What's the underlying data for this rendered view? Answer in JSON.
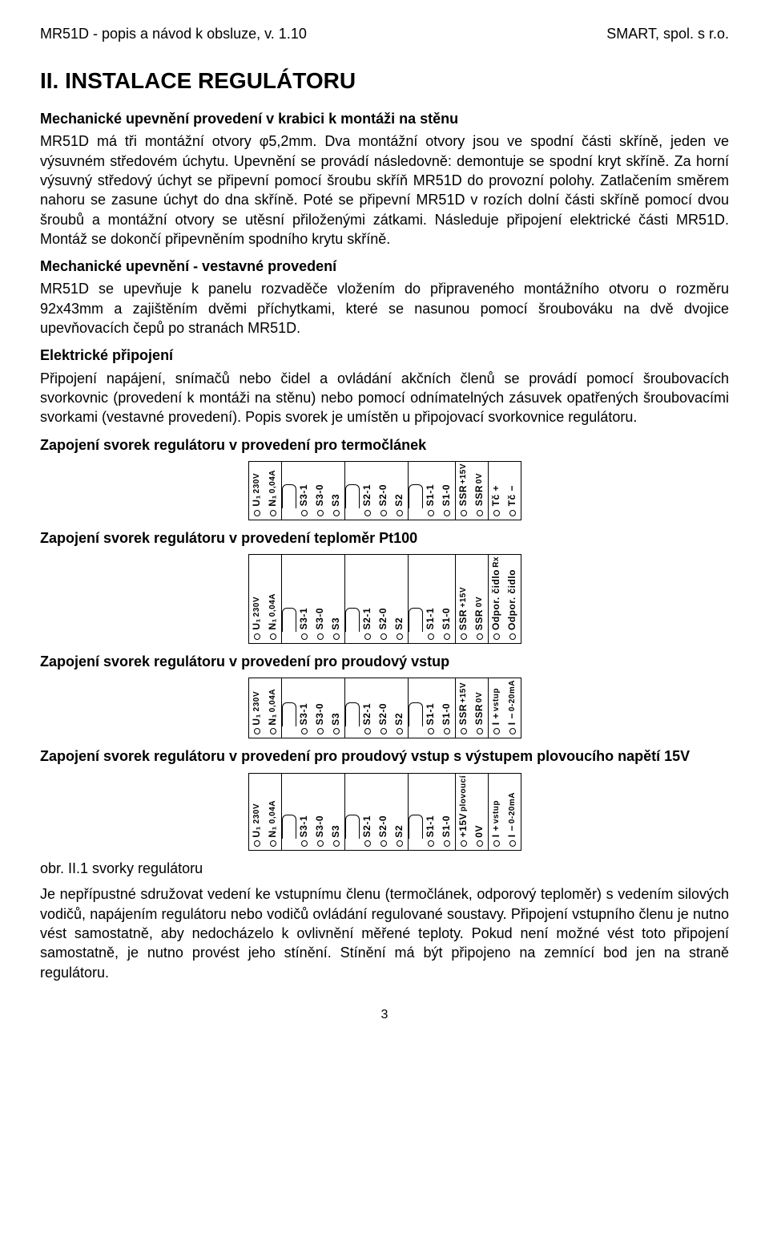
{
  "header": {
    "left": "MR51D  - popis a návod k obsluze, v. 1.10",
    "right": "SMART, spol. s r.o."
  },
  "sectionTitle": "II.    INSTALACE REGULÁTORU",
  "h3_1": "Mechanické upevnění provedení v krabici k montáži na stěnu",
  "p1": "MR51D má tři montážní otvory φ5,2mm. Dva montážní otvory jsou ve spodní části skříně, jeden ve výsuvném středovém úchytu. Upevnění se provádí následovně: demontuje se spodní kryt skříně. Za horní výsuvný středový úchyt se připevní pomocí šroubu skříň MR51D do provozní polohy. Zatlačením směrem nahoru se zasune úchyt do dna skříně. Poté se připevní MR51D v rozích dolní části skříně pomocí dvou šroubů a montážní otvory se utěsní přiloženými zátkami. Následuje připojení elektrické části MR51D. Montáž se dokončí připevněním spodního krytu skříně.",
  "h3_2": "Mechanické upevnění - vestavné provedení",
  "p2": "MR51D se upevňuje k panelu rozvaděče vložením do připraveného montážního otvoru o rozměru 92x43mm a zajištěním dvěmi příchytkami, které se nasunou pomocí šroubováku na dvě dvojice upevňovacích čepů po stranách MR51D.",
  "h3_3": "Elektrické připojení",
  "p3": "Připojení napájení, snímačů nebo čidel a ovládání akčních členů se provádí pomocí šroubovacích svorkovnic (provedení k montáži na stěnu) nebo pomocí odnímatelných zásuvek opatřených šroubovacími svorkami (vestavné provedení). Popis svorek je umístěn u připojovací svorkovnice regulátoru.",
  "h3_4": "Zapojení svorek regulátoru v provedení pro termočlánek",
  "h3_5": "Zapojení svorek regulátoru v provedení teploměr Pt100",
  "h3_6": "Zapojení svorek regulátoru v provedení pro proudový vstup",
  "h3_7": "Zapojení svorek regulátoru v provedení pro proudový vstup s výstupem plovoucího napětí 15V",
  "figCaption": "obr. II.1  svorky regulátoru",
  "p4": "Je nepřípustné sdružovat vedení ke vstupnímu členu (termočlánek, odporový teploměr) s vedením silových vodičů, napájením regulátoru nebo vodičů ovládání regulované soustavy. Připojení vstupního členu je nutno vést samostatně, aby nedocházelo k  ovlivnění měřené teploty. Pokud není možné vést toto připojení samostatně, je nutno provést jeho stínění. Stínění má být připojeno na zemnící bod jen na straně regulátoru.",
  "pageNumber": "3",
  "terminals": {
    "power": [
      {
        "t": "U₁",
        "s": "230V"
      },
      {
        "t": "N₁",
        "s": "0,04A"
      }
    ],
    "s3": [
      "S3-1",
      "S3-0",
      "S3"
    ],
    "s2": [
      "S2-1",
      "S2-0",
      "S2"
    ],
    "s1": [
      "S1-1",
      "S1-0"
    ],
    "ssr": [
      {
        "a": "SSR",
        "b": "+15V"
      },
      {
        "a": "SSR",
        "b": "0V"
      }
    ],
    "float": [
      {
        "a": "+15V",
        "b": "plovoucí"
      },
      {
        "a": "0V",
        "b": ""
      }
    ],
    "in_tc": [
      {
        "a": "Tč +",
        "b": ""
      },
      {
        "a": "Tč −",
        "b": ""
      }
    ],
    "in_rtd": [
      {
        "a": "Odpor. čidlo",
        "b": "Rx"
      },
      {
        "a": "Odpor. čidlo",
        "b": ""
      }
    ],
    "in_ma": [
      {
        "a": "I +",
        "b": "vstup"
      },
      {
        "a": "I −",
        "b": "0-20mA"
      }
    ]
  }
}
